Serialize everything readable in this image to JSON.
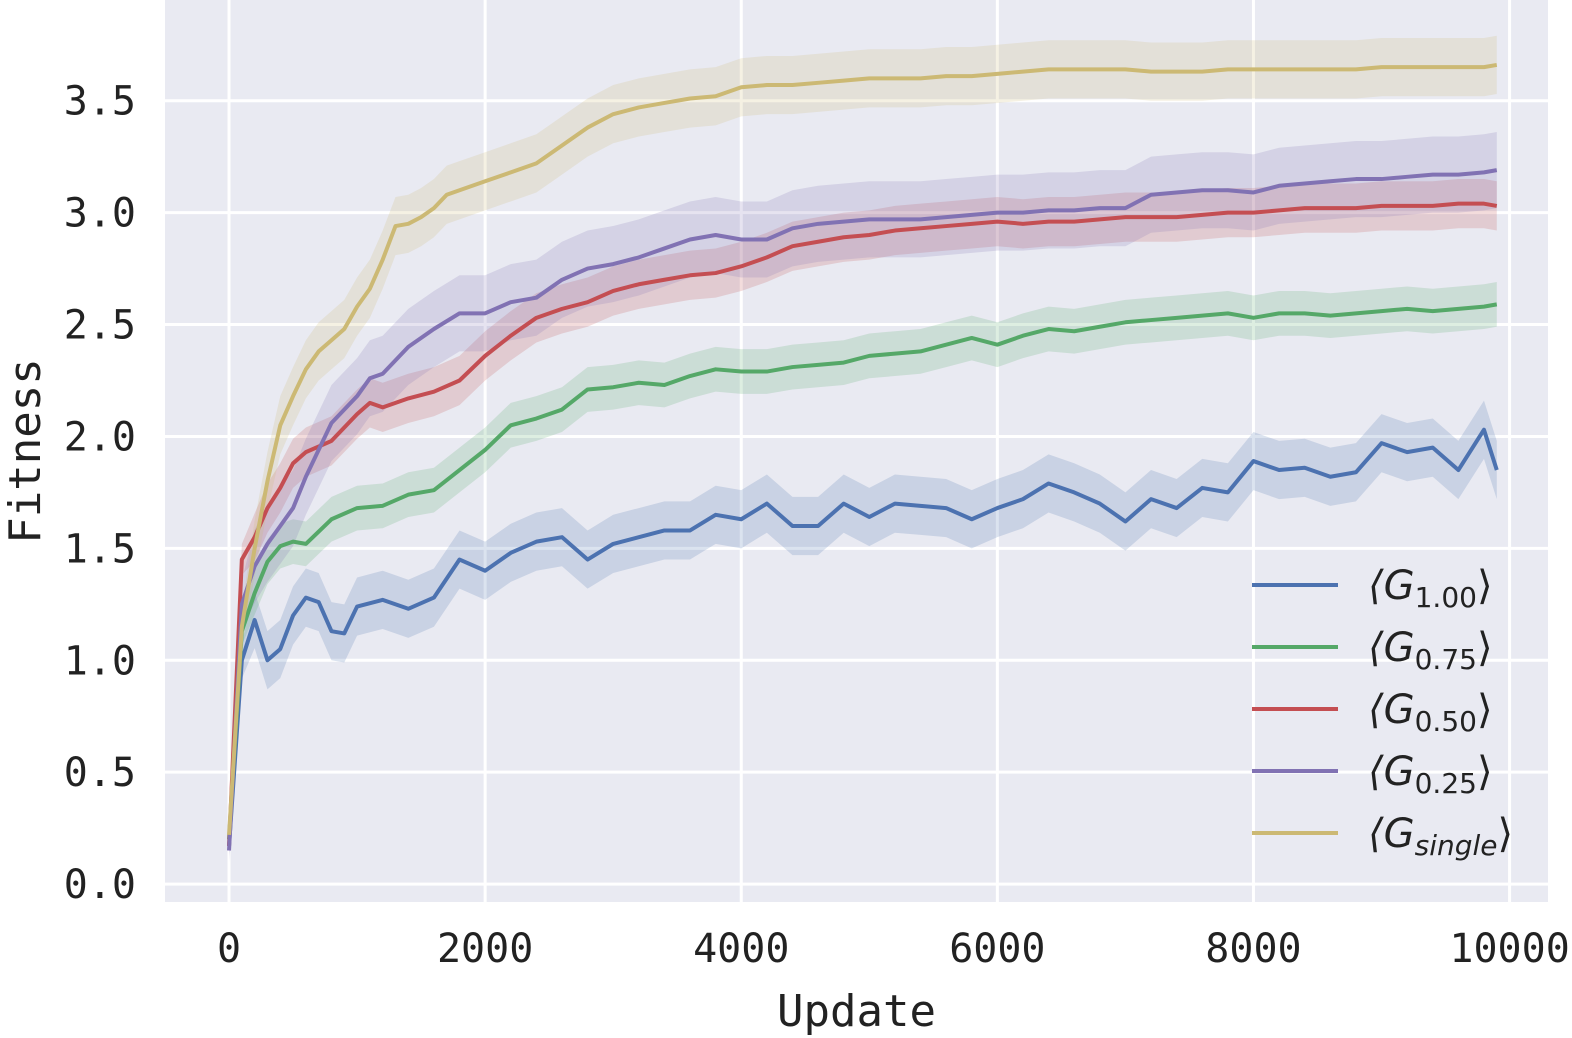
{
  "chart_data": {
    "type": "line",
    "xlabel": "Update",
    "ylabel": "Fitness",
    "xlim": [
      -500,
      10300
    ],
    "ylim": [
      -0.08,
      3.95
    ],
    "xticks": [
      0,
      2000,
      4000,
      6000,
      8000,
      10000
    ],
    "xtick_labels": [
      "0",
      "2000",
      "4000",
      "6000",
      "8000",
      "10000"
    ],
    "yticks": [
      0.0,
      0.5,
      1.0,
      1.5,
      2.0,
      2.5,
      3.0,
      3.5
    ],
    "ytick_labels": [
      "0.0",
      "0.5",
      "1.0",
      "1.5",
      "2.0",
      "2.5",
      "3.0",
      "3.5"
    ],
    "grid": true,
    "legend_position": "lower-right",
    "background": "#e9eaf2",
    "series": [
      {
        "name_main": "⟨G",
        "name_sub": "1.00",
        "name_end": "⟩",
        "color": "#4c72b0",
        "band": 0.13,
        "x": [
          0,
          100,
          200,
          300,
          400,
          500,
          600,
          700,
          800,
          900,
          1000,
          1200,
          1400,
          1600,
          1800,
          2000,
          2200,
          2400,
          2600,
          2800,
          3000,
          3200,
          3400,
          3600,
          3800,
          4000,
          4200,
          4400,
          4600,
          4800,
          5000,
          5200,
          5400,
          5600,
          5800,
          6000,
          6200,
          6400,
          6600,
          6800,
          7000,
          7200,
          7400,
          7600,
          7800,
          8000,
          8200,
          8400,
          8600,
          8800,
          9000,
          9200,
          9400,
          9600,
          9800,
          9900
        ],
        "y": [
          0.17,
          1.0,
          1.18,
          1.0,
          1.05,
          1.2,
          1.28,
          1.26,
          1.13,
          1.12,
          1.24,
          1.27,
          1.23,
          1.28,
          1.45,
          1.4,
          1.48,
          1.53,
          1.55,
          1.45,
          1.52,
          1.55,
          1.58,
          1.58,
          1.65,
          1.63,
          1.7,
          1.6,
          1.6,
          1.7,
          1.64,
          1.7,
          1.69,
          1.68,
          1.63,
          1.68,
          1.72,
          1.79,
          1.75,
          1.7,
          1.62,
          1.72,
          1.68,
          1.77,
          1.75,
          1.89,
          1.85,
          1.86,
          1.82,
          1.84,
          1.97,
          1.93,
          1.95,
          1.85,
          2.03,
          1.85
        ]
      },
      {
        "name_main": "⟨G",
        "name_sub": "0.75",
        "name_end": "⟩",
        "color": "#55a868",
        "band": 0.1,
        "x": [
          0,
          100,
          200,
          300,
          400,
          500,
          600,
          800,
          1000,
          1200,
          1400,
          1600,
          1800,
          2000,
          2200,
          2400,
          2600,
          2800,
          3000,
          3200,
          3400,
          3600,
          3800,
          4000,
          4200,
          4400,
          4600,
          4800,
          5000,
          5200,
          5400,
          5600,
          5800,
          6000,
          6200,
          6400,
          6600,
          6800,
          7000,
          7200,
          7400,
          7600,
          7800,
          8000,
          8200,
          8400,
          8600,
          8800,
          9000,
          9200,
          9400,
          9600,
          9800,
          9900
        ],
        "y": [
          0.2,
          1.13,
          1.3,
          1.44,
          1.51,
          1.53,
          1.52,
          1.63,
          1.68,
          1.69,
          1.74,
          1.76,
          1.85,
          1.94,
          2.05,
          2.08,
          2.12,
          2.21,
          2.22,
          2.24,
          2.23,
          2.27,
          2.3,
          2.29,
          2.29,
          2.31,
          2.32,
          2.33,
          2.36,
          2.37,
          2.38,
          2.41,
          2.44,
          2.41,
          2.45,
          2.48,
          2.47,
          2.49,
          2.51,
          2.52,
          2.53,
          2.54,
          2.55,
          2.53,
          2.55,
          2.55,
          2.54,
          2.55,
          2.56,
          2.57,
          2.56,
          2.57,
          2.58,
          2.59
        ]
      },
      {
        "name_main": "⟨G",
        "name_sub": "0.50",
        "name_end": "⟩",
        "color": "#c44e52",
        "band": 0.11,
        "x": [
          0,
          100,
          200,
          300,
          400,
          500,
          600,
          800,
          1000,
          1100,
          1200,
          1400,
          1600,
          1800,
          2000,
          2200,
          2400,
          2600,
          2800,
          3000,
          3200,
          3400,
          3600,
          3800,
          4000,
          4200,
          4400,
          4600,
          4800,
          5000,
          5200,
          5400,
          5600,
          5800,
          6000,
          6200,
          6400,
          6600,
          6800,
          7000,
          7200,
          7400,
          7600,
          7800,
          8000,
          8200,
          8400,
          8600,
          8800,
          9000,
          9200,
          9400,
          9600,
          9800,
          9900
        ],
        "y": [
          0.17,
          1.45,
          1.55,
          1.68,
          1.77,
          1.88,
          1.93,
          1.98,
          2.1,
          2.15,
          2.13,
          2.17,
          2.2,
          2.25,
          2.36,
          2.45,
          2.53,
          2.57,
          2.6,
          2.65,
          2.68,
          2.7,
          2.72,
          2.73,
          2.76,
          2.8,
          2.85,
          2.87,
          2.89,
          2.9,
          2.92,
          2.93,
          2.94,
          2.95,
          2.96,
          2.95,
          2.96,
          2.96,
          2.97,
          2.98,
          2.98,
          2.98,
          2.99,
          3.0,
          3.0,
          3.01,
          3.02,
          3.02,
          3.02,
          3.03,
          3.03,
          3.03,
          3.04,
          3.04,
          3.03
        ]
      },
      {
        "name_main": "⟨G",
        "name_sub": "0.25",
        "name_end": "⟩",
        "color": "#8172b3",
        "band": 0.17,
        "x": [
          0,
          100,
          200,
          300,
          400,
          500,
          600,
          800,
          1000,
          1100,
          1200,
          1400,
          1600,
          1800,
          2000,
          2200,
          2400,
          2600,
          2800,
          3000,
          3200,
          3400,
          3600,
          3800,
          4000,
          4200,
          4400,
          4600,
          4800,
          5000,
          5200,
          5400,
          5600,
          5800,
          6000,
          6200,
          6400,
          6600,
          6800,
          7000,
          7200,
          7400,
          7600,
          7800,
          8000,
          8200,
          8400,
          8600,
          8800,
          9000,
          9200,
          9400,
          9600,
          9800,
          9900
        ],
        "y": [
          0.15,
          1.25,
          1.42,
          1.52,
          1.6,
          1.68,
          1.82,
          2.06,
          2.18,
          2.26,
          2.28,
          2.4,
          2.48,
          2.55,
          2.55,
          2.6,
          2.62,
          2.7,
          2.75,
          2.77,
          2.8,
          2.84,
          2.88,
          2.9,
          2.88,
          2.88,
          2.93,
          2.95,
          2.96,
          2.97,
          2.97,
          2.97,
          2.98,
          2.99,
          3.0,
          3.0,
          3.01,
          3.01,
          3.02,
          3.02,
          3.08,
          3.09,
          3.1,
          3.1,
          3.09,
          3.12,
          3.13,
          3.14,
          3.15,
          3.15,
          3.16,
          3.17,
          3.17,
          3.18,
          3.19
        ]
      },
      {
        "name_main": "⟨G",
        "name_sub": "single",
        "name_end": "⟩",
        "color": "#ccb974",
        "band": 0.13,
        "x": [
          0,
          100,
          200,
          300,
          400,
          500,
          600,
          700,
          800,
          900,
          1000,
          1100,
          1200,
          1300,
          1400,
          1500,
          1600,
          1700,
          1800,
          2000,
          2200,
          2400,
          2600,
          2800,
          3000,
          3200,
          3400,
          3600,
          3800,
          4000,
          4200,
          4400,
          4600,
          4800,
          5000,
          5200,
          5400,
          5600,
          5800,
          6000,
          6200,
          6400,
          6600,
          6800,
          7000,
          7200,
          7400,
          7600,
          7800,
          8000,
          8200,
          8400,
          8600,
          8800,
          9000,
          9200,
          9400,
          9600,
          9800,
          9900
        ],
        "y": [
          0.22,
          1.15,
          1.5,
          1.8,
          2.05,
          2.18,
          2.3,
          2.38,
          2.43,
          2.48,
          2.58,
          2.66,
          2.79,
          2.94,
          2.95,
          2.98,
          3.02,
          3.08,
          3.1,
          3.14,
          3.18,
          3.22,
          3.3,
          3.38,
          3.44,
          3.47,
          3.49,
          3.51,
          3.52,
          3.56,
          3.57,
          3.57,
          3.58,
          3.59,
          3.6,
          3.6,
          3.6,
          3.61,
          3.61,
          3.62,
          3.63,
          3.64,
          3.64,
          3.64,
          3.64,
          3.63,
          3.63,
          3.63,
          3.64,
          3.64,
          3.64,
          3.64,
          3.64,
          3.64,
          3.65,
          3.65,
          3.65,
          3.65,
          3.65,
          3.66
        ]
      }
    ]
  }
}
